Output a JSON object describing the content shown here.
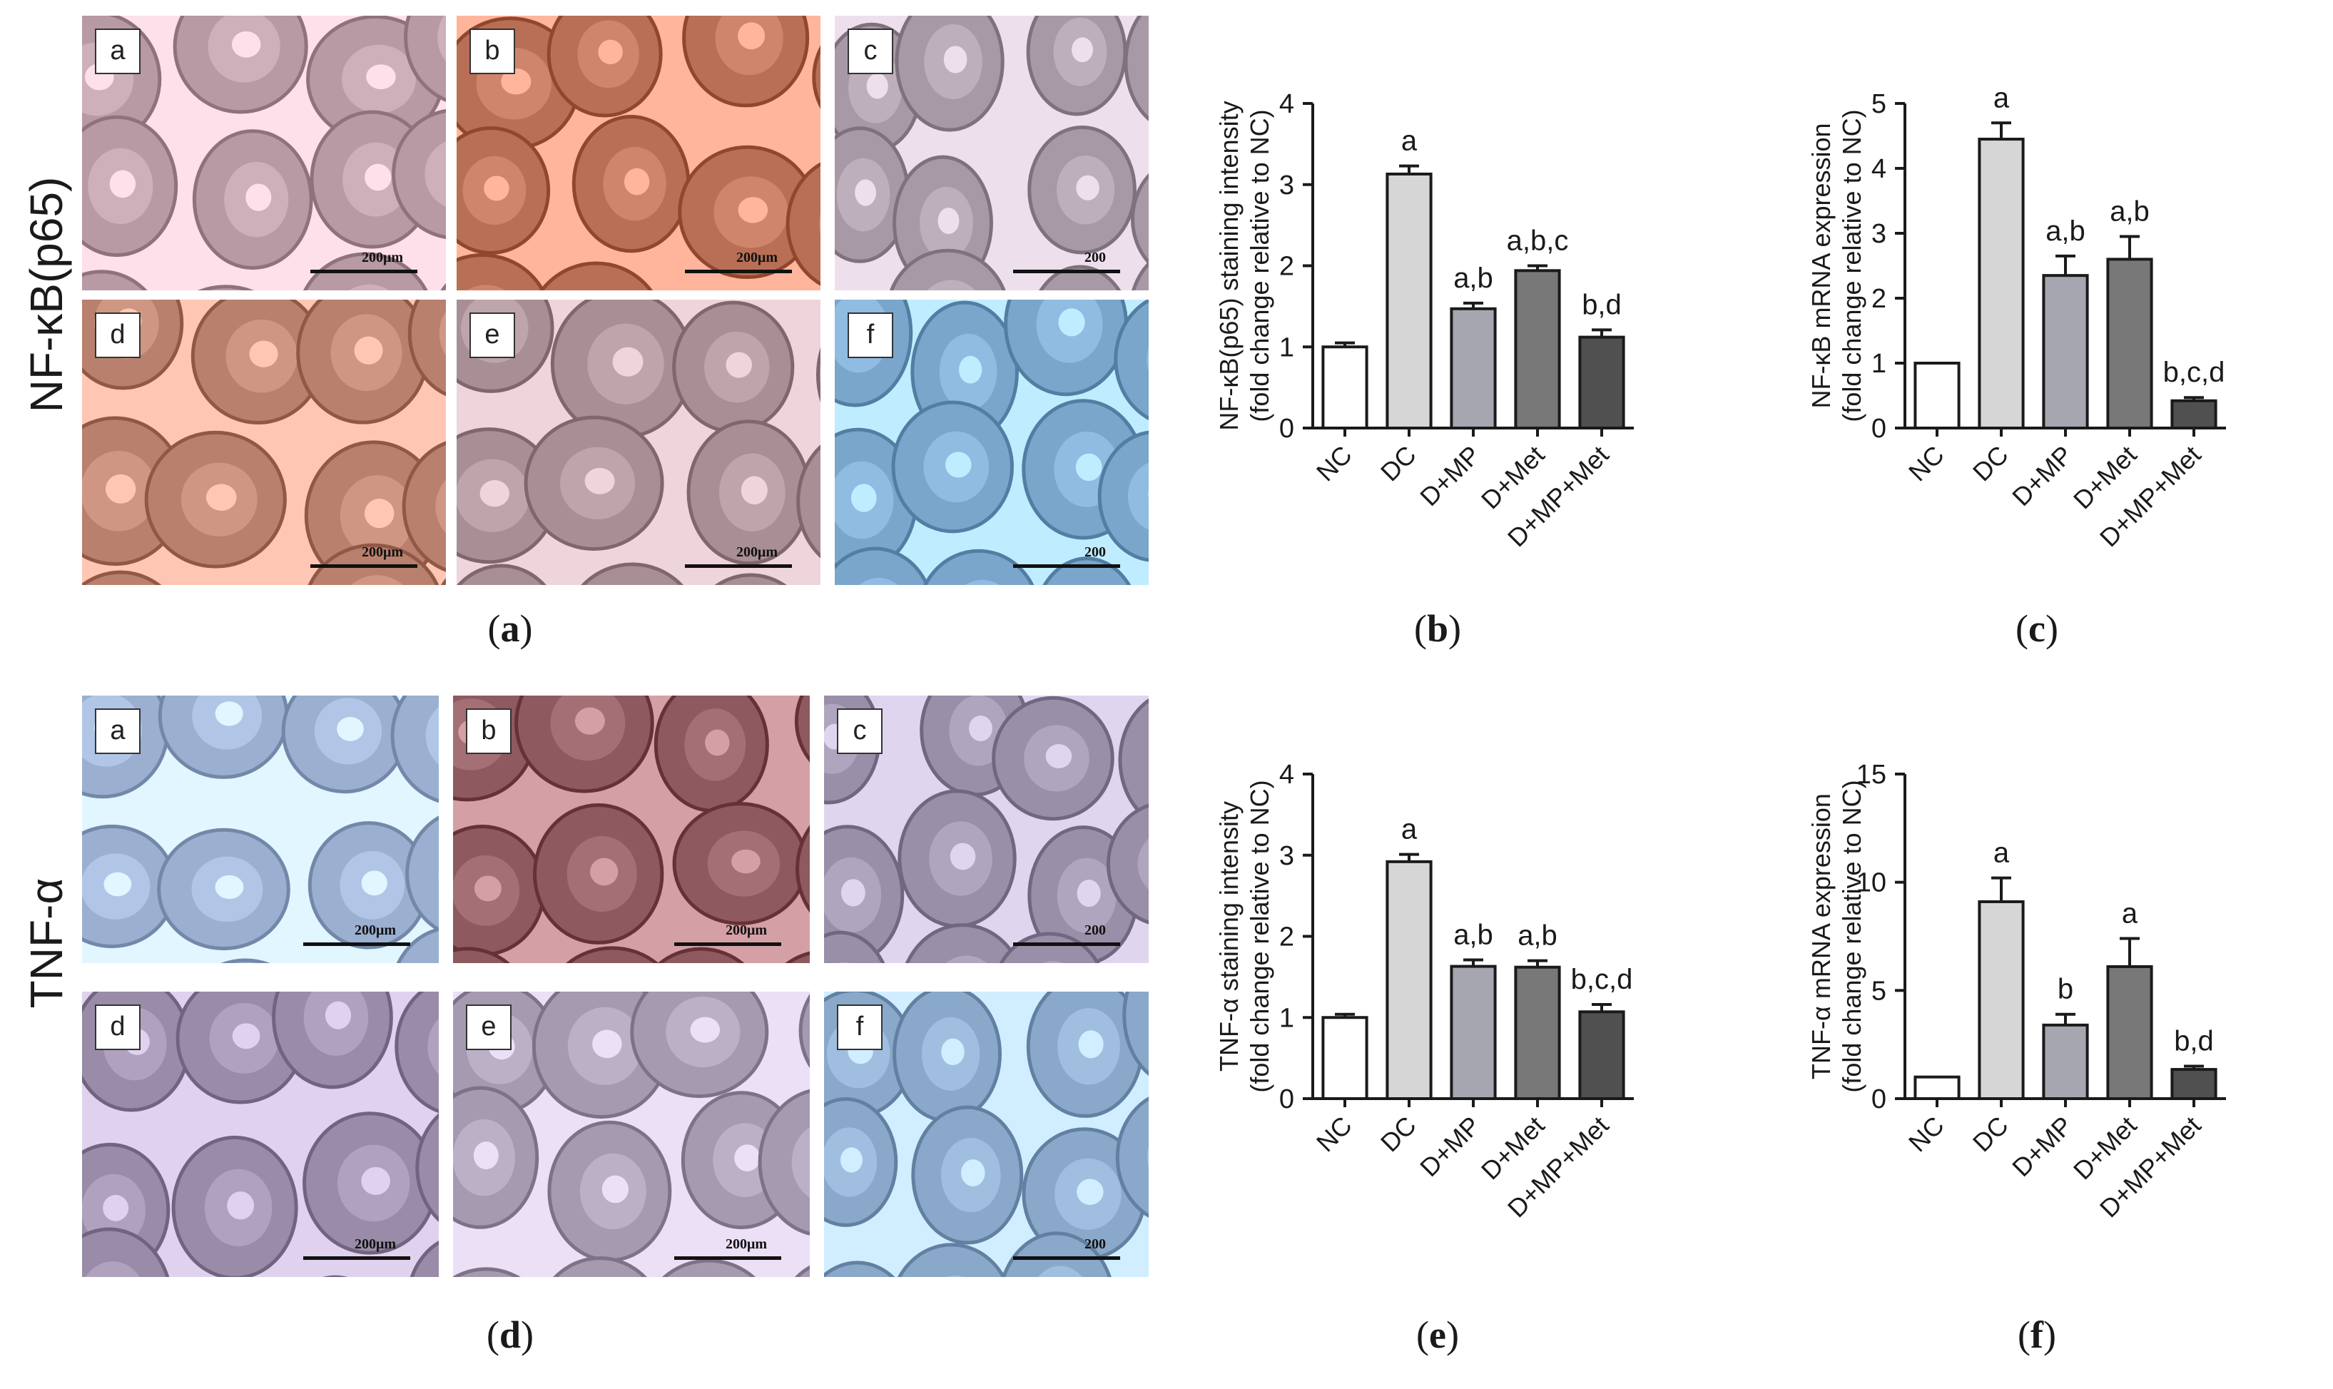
{
  "figure": {
    "rows": [
      {
        "label": "NF-κB(p65)",
        "caption_letter": "a"
      },
      {
        "label": "TNF-α",
        "caption_letter": "d"
      }
    ],
    "micro_tiles": [
      {
        "letter": "a",
        "scale": "200μm",
        "stain": "#b79aa3"
      },
      {
        "letter": "b",
        "scale": "200μm",
        "stain": "#b86f55"
      },
      {
        "letter": "c",
        "scale": "200",
        "stain": "#a79aa6"
      },
      {
        "letter": "d",
        "scale": "200μm",
        "stain": "#b9816d"
      },
      {
        "letter": "e",
        "scale": "200μm",
        "stain": "#a88f95"
      },
      {
        "letter": "f",
        "scale": "200",
        "stain": "#7aa6cc"
      },
      {
        "letter": "a",
        "scale": "200μm",
        "stain": "#9bb0d1"
      },
      {
        "letter": "b",
        "scale": "200μm",
        "stain": "#8e5a5f"
      },
      {
        "letter": "c",
        "scale": "200",
        "stain": "#9a8fa9"
      },
      {
        "letter": "d",
        "scale": "200μm",
        "stain": "#9a8ca8"
      },
      {
        "letter": "e",
        "scale": "200μm",
        "stain": "#a59ab0"
      },
      {
        "letter": "f",
        "scale": "200",
        "stain": "#8aa8c9"
      }
    ],
    "captions": [
      "a",
      "b",
      "c",
      "d",
      "e",
      "f"
    ]
  },
  "chart_data": [
    {
      "type": "bar",
      "panel": "b",
      "categories": [
        "NC",
        "DC",
        "D+MP",
        "D+Met",
        "D+MP+Met"
      ],
      "values": [
        1.0,
        3.13,
        1.47,
        1.94,
        1.12
      ],
      "errors": [
        0.05,
        0.1,
        0.07,
        0.06,
        0.09
      ],
      "letters": [
        "",
        "a",
        "a,b",
        "a,b,c",
        "b,d"
      ],
      "ylabel_line1": "NF-κB(p65) staining intensity",
      "ylabel_line2": "(fold change relative to NC)",
      "ylim": [
        0,
        4
      ],
      "yticks": [
        "0",
        "1",
        "2",
        "3",
        "4"
      ],
      "colors": [
        "#ffffff",
        "#d6d6d6",
        "#a6a6b0",
        "#787878",
        "#505050"
      ]
    },
    {
      "type": "bar",
      "panel": "c",
      "categories": [
        "NC",
        "DC",
        "D+MP",
        "D+Met",
        "D+MP+Met"
      ],
      "values": [
        1.0,
        4.45,
        2.35,
        2.6,
        0.42
      ],
      "errors": [
        0.0,
        0.25,
        0.3,
        0.35,
        0.05
      ],
      "letters": [
        "",
        "a",
        "a,b",
        "a,b",
        "b,c,d"
      ],
      "ylabel_line1": "NF-κB mRNA expression",
      "ylabel_line2": "(fold change relative to NC)",
      "ylim": [
        0,
        5
      ],
      "yticks": [
        "0",
        "1",
        "2",
        "3",
        "4",
        "5"
      ],
      "colors": [
        "#ffffff",
        "#d6d6d6",
        "#a6a6b0",
        "#787878",
        "#505050"
      ]
    },
    {
      "type": "bar",
      "panel": "e",
      "categories": [
        "NC",
        "DC",
        "D+MP",
        "D+Met",
        "D+MP+Met"
      ],
      "values": [
        1.0,
        2.92,
        1.63,
        1.62,
        1.07
      ],
      "errors": [
        0.04,
        0.09,
        0.08,
        0.08,
        0.09
      ],
      "letters": [
        "",
        "a",
        "a,b",
        "a,b",
        "b,c,d"
      ],
      "ylabel_line1": "TNF-α staining intensity",
      "ylabel_line2": "(fold change relative to NC)",
      "ylim": [
        0,
        4
      ],
      "yticks": [
        "0",
        "1",
        "2",
        "3",
        "4"
      ],
      "colors": [
        "#ffffff",
        "#d6d6d6",
        "#a6a6b0",
        "#787878",
        "#505050"
      ]
    },
    {
      "type": "bar",
      "panel": "f",
      "categories": [
        "NC",
        "DC",
        "D+MP",
        "D+Met",
        "D+MP+Met"
      ],
      "values": [
        1.0,
        9.1,
        3.4,
        6.1,
        1.35
      ],
      "errors": [
        0.0,
        1.1,
        0.5,
        1.3,
        0.15
      ],
      "letters": [
        "",
        "a",
        "b",
        "a",
        "b,d"
      ],
      "ylabel_line1": "TNF-α mRNA expression",
      "ylabel_line2": "(fold change relative to NC)",
      "ylim": [
        0,
        15
      ],
      "yticks": [
        "0",
        "5",
        "10",
        "15"
      ],
      "colors": [
        "#ffffff",
        "#d6d6d6",
        "#a6a6b0",
        "#787878",
        "#505050"
      ]
    }
  ]
}
